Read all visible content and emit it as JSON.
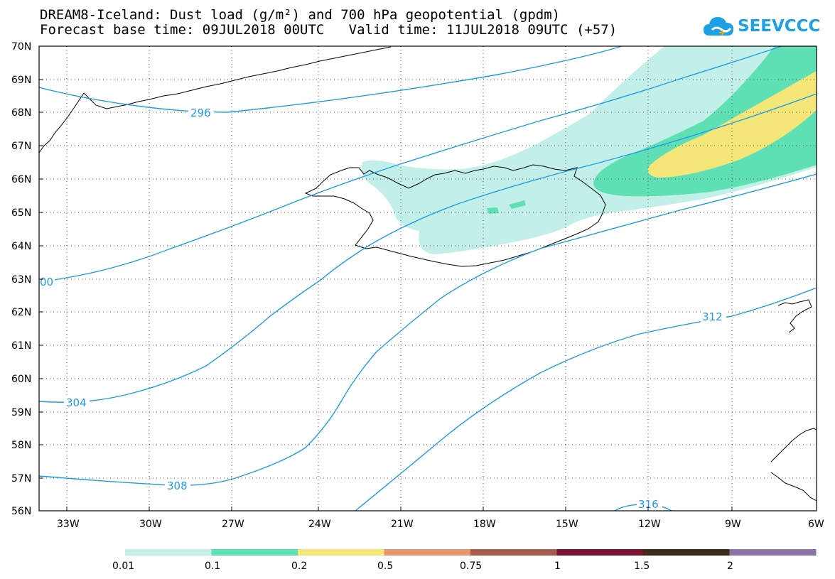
{
  "header": {
    "title_line1": "DREAM8-Iceland: Dust load (g/m²) and 700 hPa geopotential (gpdm)",
    "title_line2": "Forecast base time: 09JUL2018 00UTC   Valid time: 11JUL2018 09UTC (+57)"
  },
  "logo": {
    "text": "SEEVCCC",
    "icon": "cloud-icon",
    "color": "#1da1e6"
  },
  "map": {
    "lat_labels": [
      "70N",
      "69N",
      "68N",
      "67N",
      "66N",
      "65N",
      "64N",
      "63N",
      "62N",
      "61N",
      "60N",
      "59N",
      "58N",
      "57N",
      "56N"
    ],
    "lon_labels": [
      "33W",
      "30W",
      "27W",
      "24W",
      "21W",
      "18W",
      "15W",
      "12W",
      "9W",
      "6W"
    ],
    "lat_range": [
      56,
      70
    ],
    "lon_range": [
      -34.5,
      -6
    ],
    "grid": "dotted",
    "contour_color": "#1e9de6",
    "contour_labels": [
      {
        "value": "296"
      },
      {
        "value": "00"
      },
      {
        "value": "304"
      },
      {
        "value": "308"
      },
      {
        "value": "312"
      },
      {
        "value": "316"
      }
    ]
  },
  "legend": {
    "colors": [
      "#c2f0e8",
      "#5fe0b4",
      "#f5e67a",
      "#e9966d",
      "#a85a4d",
      "#7a1231",
      "#3d2a17",
      "#8c73a8"
    ],
    "labels": [
      "0.01",
      "0.1",
      "0.2",
      "0.5",
      "0.75",
      "1",
      "1.5",
      "2"
    ]
  }
}
